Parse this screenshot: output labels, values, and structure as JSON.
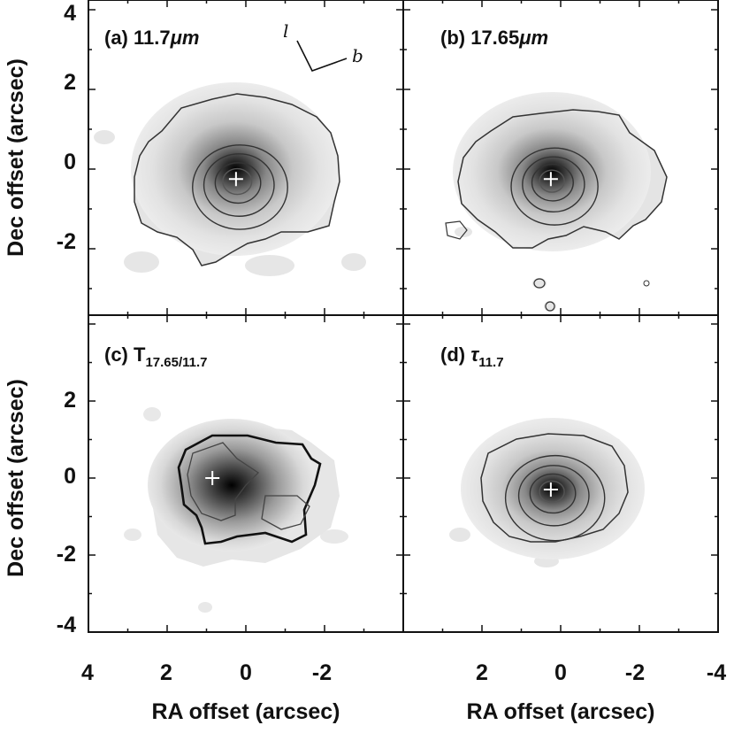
{
  "chart_data": {
    "type": "heatmap",
    "layout": "2x2 panels with contour overlays",
    "shared_axes": {
      "xlabel": "RA offset (arcsec)",
      "ylabel": "Dec offset (arcsec)",
      "xlim": [
        4,
        -4
      ],
      "ylim": [
        -4.3,
        4.3
      ],
      "x_ticks": [
        4,
        2,
        0,
        -2,
        -4
      ],
      "y_ticks_top": [
        4,
        2,
        0,
        -2
      ],
      "y_ticks_bottom": [
        2,
        0,
        -2,
        -4
      ]
    },
    "tick_text": {
      "x_left": [
        "4",
        "2",
        "0",
        "-2"
      ],
      "x_right": [
        "2",
        "0",
        "-2",
        "-4"
      ],
      "y_top": [
        "4",
        "2",
        "0",
        "-2"
      ],
      "y_bottom": [
        "2",
        "0",
        "-2",
        "-4"
      ]
    },
    "panels": [
      {
        "id": "a",
        "prefix": "(a) ",
        "label": "11.7",
        "unit": "μm",
        "peak_position": [
          0.25,
          -0.25
        ],
        "cross_position": [
          0.25,
          -0.25
        ],
        "contour_radii": [
          0.35,
          0.55,
          0.85,
          1.15
        ],
        "emission_extent": [
          2.7,
          2.4
        ],
        "orientation_indicator": {
          "l": "l",
          "b": "b"
        }
      },
      {
        "id": "b",
        "prefix": "(b) ",
        "label": "17.65",
        "unit": "μm",
        "peak_position": [
          0.25,
          -0.25
        ],
        "cross_position": [
          0.25,
          -0.25
        ],
        "contour_radii": [
          0.3,
          0.5,
          0.75,
          1.05
        ],
        "emission_extent": [
          2.6,
          2.1
        ]
      },
      {
        "id": "c",
        "prefix": "(c) ",
        "label": "T",
        "subscript": "17.65/11.7",
        "peak_position": [
          0.3,
          -0.35
        ],
        "cross_position": [
          0.85,
          0.0
        ],
        "emission_extent": [
          2.0,
          1.6
        ]
      },
      {
        "id": "d",
        "prefix": "(d) ",
        "label": "τ",
        "subscript": "11.7",
        "peak_position": [
          0.25,
          -0.3
        ],
        "cross_position": [
          0.25,
          -0.3
        ],
        "contour_radii": [
          0.3,
          0.55,
          0.85,
          1.2
        ],
        "emission_extent": [
          2.4,
          1.9
        ]
      }
    ]
  },
  "colors": {
    "peak": "#000000",
    "background": "#ffffff",
    "contour": "#333333",
    "cross": "#ffffff"
  }
}
